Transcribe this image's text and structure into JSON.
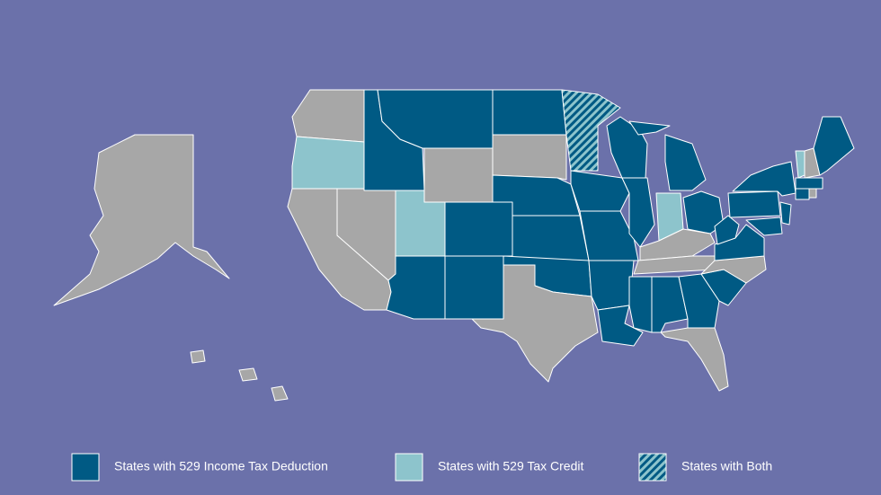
{
  "legend": {
    "items": [
      {
        "label": "States with 529 Income Tax Deduction",
        "color": "#005a84"
      },
      {
        "label": "States with 529 Tax Credit",
        "color": "#8dc4cc"
      },
      {
        "label": "States with Both",
        "color": "#8dc4cc",
        "stripe": "#005a84"
      }
    ]
  }
}
